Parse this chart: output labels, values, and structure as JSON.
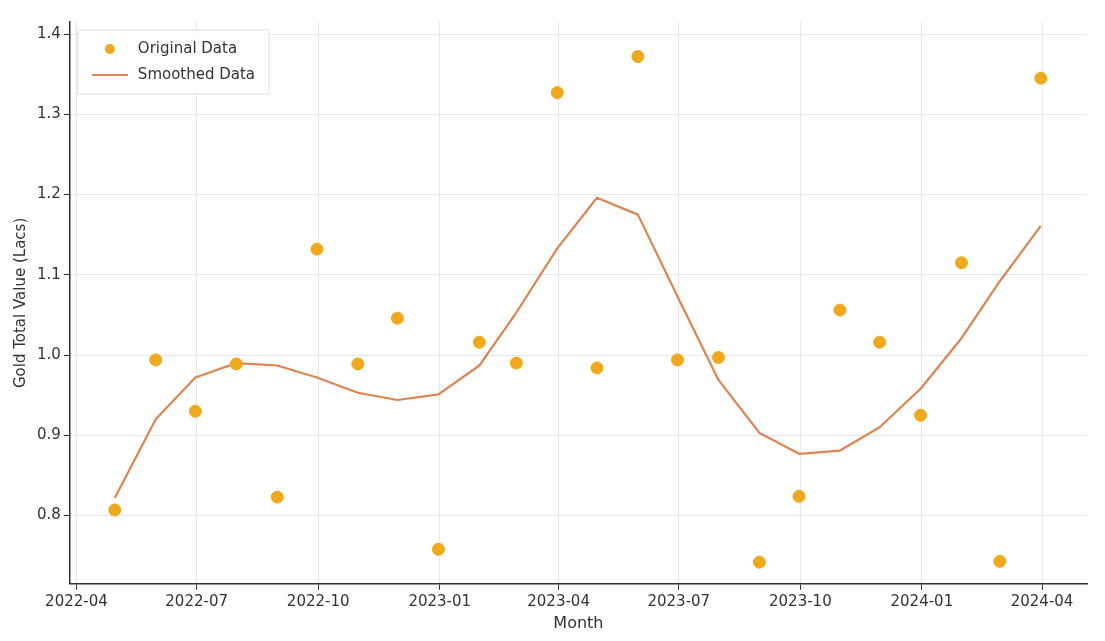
{
  "chart_data": {
    "type": "line",
    "xlabel": "Month",
    "ylabel": "Gold Total Value (Lacs)",
    "x": [
      "2022-04-30",
      "2022-05-31",
      "2022-06-30",
      "2022-07-31",
      "2022-08-31",
      "2022-09-30",
      "2022-10-31",
      "2022-11-30",
      "2022-12-31",
      "2023-01-31",
      "2023-02-28",
      "2023-03-31",
      "2023-04-30",
      "2023-05-31",
      "2023-06-30",
      "2023-07-31",
      "2023-08-31",
      "2023-09-30",
      "2023-10-31",
      "2023-11-30",
      "2023-12-31",
      "2024-01-31",
      "2024-02-29",
      "2024-03-31"
    ],
    "series": [
      {
        "name": "Original Data",
        "type": "scatter",
        "color": "#f0a81c",
        "marker": "circle",
        "values": [
          0.807,
          0.994,
          0.93,
          0.989,
          0.823,
          1.132,
          0.989,
          1.046,
          0.758,
          1.016,
          0.99,
          1.327,
          0.984,
          1.372,
          0.994,
          0.997,
          0.742,
          0.824,
          1.056,
          1.016,
          0.925,
          1.115,
          0.743,
          1.345
        ]
      },
      {
        "name": "Smoothed Data",
        "type": "line",
        "color": "#dd8452",
        "marker": "none",
        "line_style": "solid",
        "values": [
          0.822,
          0.92,
          0.972,
          0.99,
          0.987,
          0.972,
          0.953,
          0.944,
          0.951,
          0.987,
          1.053,
          1.133,
          1.196,
          1.175,
          1.073,
          0.969,
          0.903,
          0.877,
          0.881,
          0.91,
          0.958,
          1.021,
          1.092,
          1.161
        ]
      }
    ],
    "xlim": [
      "2022-03-27",
      "2024-05-05"
    ],
    "xticks": [
      "2022-04",
      "2022-07",
      "2022-10",
      "2023-01",
      "2023-04",
      "2023-07",
      "2023-10",
      "2024-01",
      "2024-04"
    ],
    "ylim": [
      0.715,
      1.415
    ],
    "yticks": [
      0.8,
      0.9,
      {
        "value": 1,
        "label": "1.0"
      },
      1.1,
      1.2,
      1.3,
      1.4
    ],
    "grid": true,
    "legend": "top left"
  }
}
